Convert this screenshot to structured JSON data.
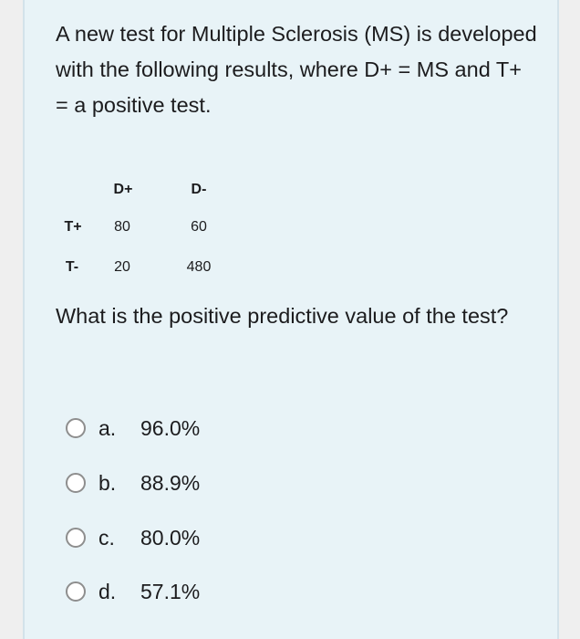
{
  "question": {
    "intro": "A new test for Multiple Sclerosis (MS) is developed with the following results, where D+ = MS and T+ = a positive test.",
    "table": {
      "col_headers": [
        "D+",
        "D-"
      ],
      "rows": [
        {
          "label": "T+",
          "values": [
            "80",
            "60"
          ]
        },
        {
          "label": "T-",
          "values": [
            "20",
            "480"
          ]
        }
      ]
    },
    "prompt": "What is the positive predictive value of the test?",
    "options": [
      {
        "letter": "a.",
        "text": "96.0%"
      },
      {
        "letter": "b.",
        "text": "88.9%"
      },
      {
        "letter": "c.",
        "text": "80.0%"
      },
      {
        "letter": "d.",
        "text": "57.1%"
      }
    ]
  }
}
